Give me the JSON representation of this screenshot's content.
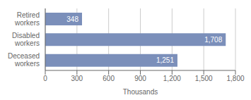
{
  "chart_data": {
    "type": "bar",
    "orientation": "horizontal",
    "categories": [
      "Deceased\nworkers",
      "Disabled\nworkers",
      "Retired\nworkers"
    ],
    "values": [
      1251,
      1708,
      348
    ],
    "value_labels": [
      "1,251",
      "1,708",
      "348"
    ],
    "data_labels": true,
    "color": "#7b8fba",
    "xlabel": "Thousands",
    "xlim": [
      0,
      1800
    ],
    "xticks": [
      0,
      300,
      600,
      900,
      {
        "value": 1200,
        "label": "1,200"
      },
      {
        "value": 1500,
        "label": "1,500"
      },
      {
        "value": 1800,
        "label": "1,800"
      }
    ],
    "grid": true
  }
}
